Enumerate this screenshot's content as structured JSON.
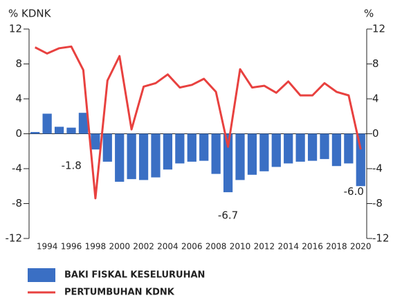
{
  "chart_data": {
    "type": "bar-line",
    "y_label": "% KDNK",
    "y2_label": "%",
    "categories": [
      null,
      "1994",
      null,
      "1996",
      null,
      "1998",
      null,
      "2000",
      null,
      "2002",
      null,
      "2004",
      null,
      "2006",
      null,
      "2008",
      null,
      "2010",
      null,
      "2012",
      null,
      "2014",
      null,
      "2016",
      null,
      "2018",
      null,
      "2020"
    ],
    "series": [
      {
        "name": "BAKI FISKAL KESELURUHAN",
        "type": "bar",
        "color": "#3a6fc4",
        "values": [
          0.2,
          2.3,
          0.8,
          0.7,
          2.4,
          -1.8,
          -3.2,
          -5.5,
          -5.2,
          -5.3,
          -5.0,
          -4.1,
          -3.4,
          -3.2,
          -3.1,
          -4.6,
          -6.7,
          -5.3,
          -4.7,
          -4.3,
          -3.8,
          -3.4,
          -3.2,
          -3.1,
          -2.9,
          -3.7,
          -3.4,
          -6.0
        ],
        "value_labels": [
          null,
          null,
          null,
          null,
          null,
          "-1.8",
          null,
          null,
          null,
          null,
          null,
          null,
          null,
          null,
          null,
          null,
          "-6.7",
          null,
          null,
          null,
          null,
          null,
          null,
          null,
          null,
          null,
          null,
          "-6.0"
        ]
      },
      {
        "name": "PERTUMBUHAN KDNK",
        "type": "line",
        "color": "#e8413f",
        "axis": "y2",
        "values": [
          9.9,
          9.2,
          9.8,
          10.0,
          7.3,
          -7.4,
          6.1,
          8.9,
          0.5,
          5.4,
          5.8,
          6.8,
          5.3,
          5.6,
          6.3,
          4.8,
          -1.5,
          7.4,
          5.3,
          5.5,
          4.7,
          6.0,
          4.4,
          4.4,
          5.8,
          4.8,
          4.4,
          -1.8
        ]
      }
    ],
    "ylim": [
      -12,
      12
    ],
    "yticks": [
      12,
      8,
      4,
      0,
      -4,
      -8,
      -12
    ],
    "y2lim": [
      -12,
      12
    ],
    "y2ticks": [
      12,
      8,
      4,
      0,
      -4,
      -8,
      -12
    ]
  }
}
